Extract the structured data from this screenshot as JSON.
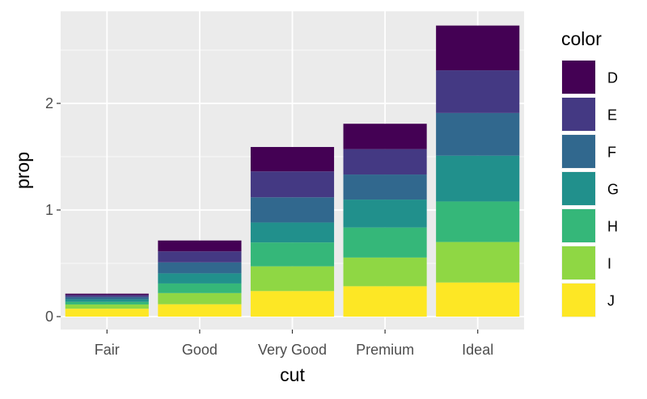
{
  "chart_data": {
    "type": "bar",
    "stacked": true,
    "categories": [
      "Fair",
      "Good",
      "Very Good",
      "Premium",
      "Ideal"
    ],
    "series": [
      {
        "name": "D",
        "color": "#440154",
        "values": [
          0.013,
          0.102,
          0.229,
          0.238,
          0.42
        ]
      },
      {
        "name": "E",
        "color": "#443983",
        "values": [
          0.018,
          0.103,
          0.243,
          0.238,
          0.4
        ]
      },
      {
        "name": "F",
        "color": "#31688E",
        "values": [
          0.022,
          0.103,
          0.236,
          0.235,
          0.4
        ]
      },
      {
        "name": "G",
        "color": "#21908C",
        "values": [
          0.023,
          0.095,
          0.187,
          0.262,
          0.43
        ]
      },
      {
        "name": "H",
        "color": "#35B779",
        "values": [
          0.025,
          0.09,
          0.224,
          0.282,
          0.38
        ]
      },
      {
        "name": "I",
        "color": "#8FD744",
        "values": [
          0.04,
          0.105,
          0.232,
          0.269,
          0.38
        ]
      },
      {
        "name": "J",
        "color": "#FDE725",
        "values": [
          0.074,
          0.116,
          0.24,
          0.285,
          0.32
        ]
      }
    ],
    "xlabel": "cut",
    "ylabel": "prop",
    "yticks": [
      0,
      1,
      2
    ],
    "ylim": [
      0,
      2.85
    ],
    "legend": {
      "title": "color",
      "position": "right"
    },
    "grid": true
  }
}
